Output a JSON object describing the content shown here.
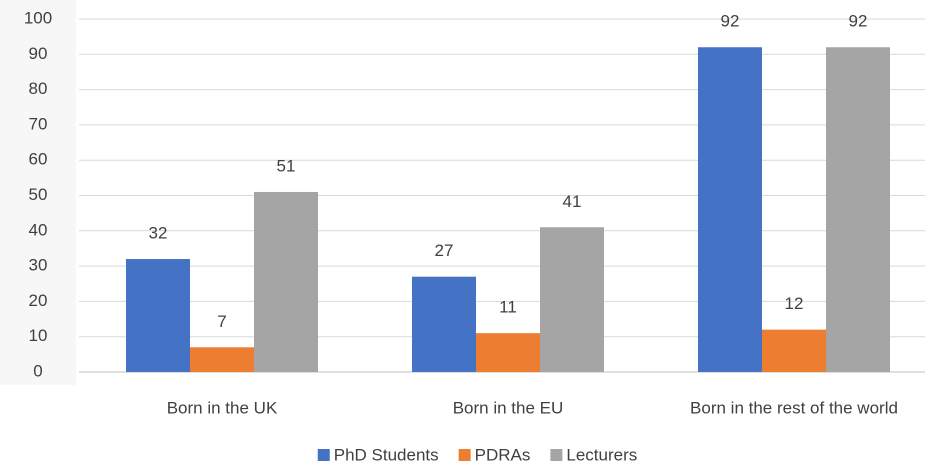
{
  "chart_data": {
    "type": "bar",
    "categories": [
      "Born in the UK",
      "Born in the EU",
      "Born in the rest of the world"
    ],
    "series": [
      {
        "name": "PhD Students",
        "color": "#4472c4",
        "values": [
          32,
          27,
          92
        ]
      },
      {
        "name": "PDRAs",
        "color": "#ed7d31",
        "values": [
          7,
          11,
          12
        ]
      },
      {
        "name": "Lecturers",
        "color": "#a5a5a5",
        "values": [
          51,
          41,
          92
        ]
      }
    ],
    "ylim": [
      0,
      100
    ],
    "yticks": [
      0,
      10,
      20,
      30,
      40,
      50,
      60,
      70,
      80,
      90,
      100
    ],
    "grid": true,
    "legend": "bottom"
  }
}
